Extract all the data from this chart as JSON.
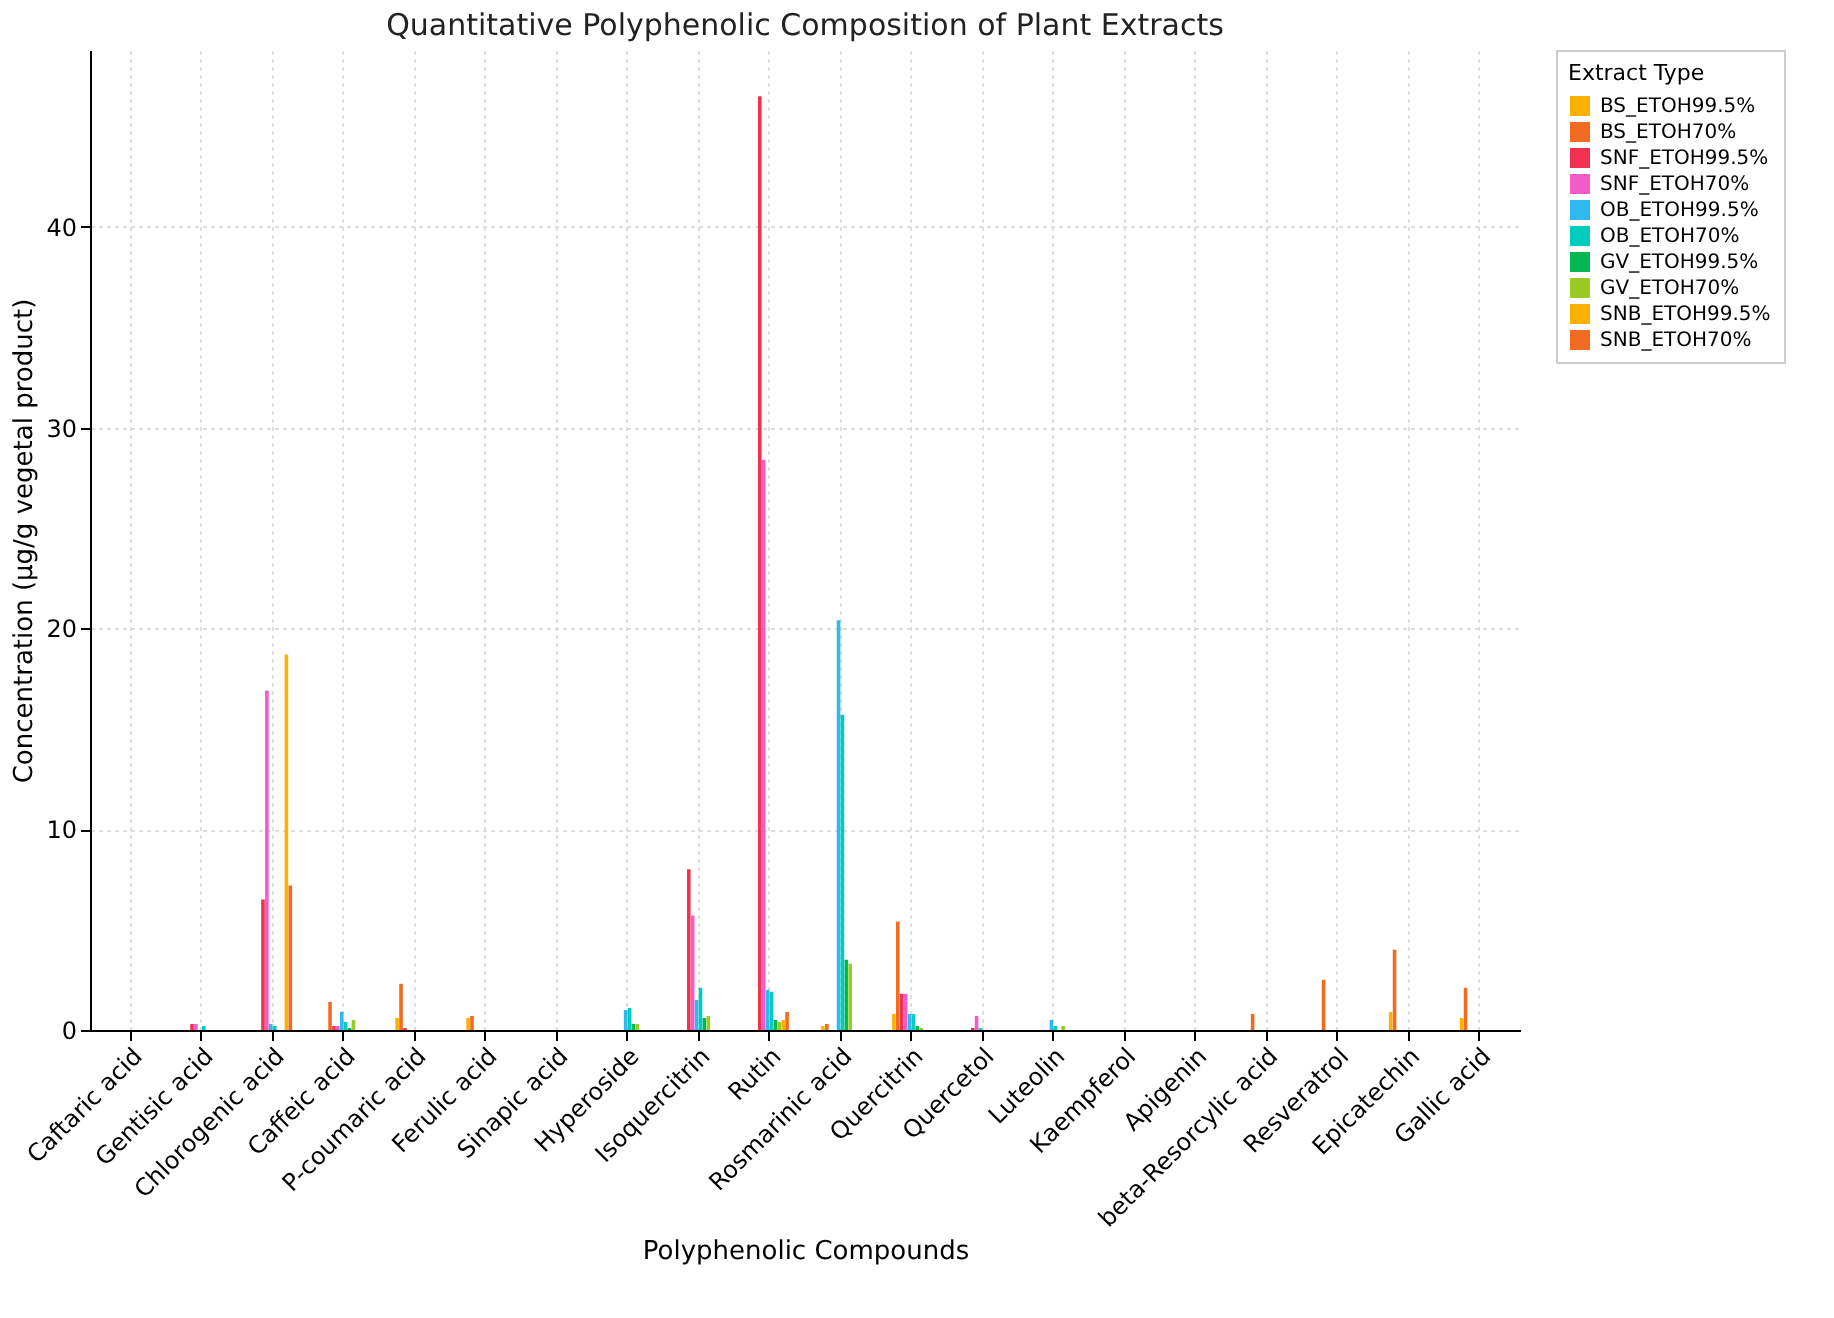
{
  "chart_data": {
    "type": "bar",
    "title": "Quantitative Polyphenolic Composition of Plant Extracts",
    "xlabel": "Polyphenolic Compounds",
    "ylabel": "Concentration (µg/g vegetal product)",
    "legend_title": "Extract Type",
    "legend": "top right",
    "grid": true,
    "ylim": [
      0,
      48.8
    ],
    "yticks": [
      0,
      10,
      20,
      30,
      40
    ],
    "categories": [
      "Caftaric acid",
      "Gentisic acid",
      "Chlorogenic acid",
      "Caffeic acid",
      "P-coumaric acid",
      "Ferulic acid",
      "Sinapic acid",
      "Hyperoside",
      "Isoquercitrin",
      "Rutin",
      "Rosmarinic acid",
      "Quercitrin",
      "Quercetol",
      "Luteolin",
      "Kaempferol",
      "Apigenin",
      "beta-Resorcylic acid",
      "Resveratrol",
      "Epicatechin",
      "Gallic acid"
    ],
    "series": [
      {
        "name": "BS_ETOH99.5%",
        "color": "#ffb000",
        "values": [
          0,
          0,
          0,
          0,
          0.6,
          0.6,
          0,
          0,
          0,
          0,
          0.2,
          0.8,
          0,
          0,
          0,
          0,
          0,
          0,
          0.9,
          0.6
        ]
      },
      {
        "name": "BS_ETOH70%",
        "color": "#f26b21",
        "values": [
          0,
          0,
          0,
          1.4,
          2.3,
          0.7,
          0,
          0,
          0,
          0,
          0.3,
          5.4,
          0,
          0,
          0,
          0,
          0.8,
          2.5,
          4.0,
          2.1
        ]
      },
      {
        "name": "SNF_ETOH99.5%",
        "color": "#f2304f",
        "values": [
          0,
          0.3,
          6.5,
          0.2,
          0.1,
          0,
          0,
          0,
          8.0,
          46.5,
          0,
          1.8,
          0.1,
          0,
          0,
          0,
          0,
          0,
          0,
          0
        ]
      },
      {
        "name": "SNF_ETOH70%",
        "color": "#f35bc8",
        "values": [
          0,
          0.3,
          16.9,
          0.2,
          0,
          0,
          0,
          0,
          5.7,
          28.4,
          0,
          1.8,
          0.7,
          0,
          0,
          0,
          0,
          0,
          0,
          0
        ]
      },
      {
        "name": "OB_ETOH99.5%",
        "color": "#30b8f0",
        "values": [
          0,
          0,
          0.3,
          0.9,
          0,
          0,
          0,
          1.0,
          1.5,
          2.0,
          20.4,
          0.8,
          0.1,
          0.5,
          0,
          0,
          0,
          0,
          0,
          0
        ]
      },
      {
        "name": "OB_ETOH70%",
        "color": "#00ccc0",
        "values": [
          0,
          0.2,
          0.2,
          0.4,
          0,
          0,
          0,
          1.1,
          2.1,
          1.9,
          15.7,
          0.8,
          0,
          0.2,
          0,
          0,
          0,
          0,
          0,
          0
        ]
      },
      {
        "name": "GV_ETOH99.5%",
        "color": "#00b84f",
        "values": [
          0,
          0,
          0,
          0.1,
          0,
          0,
          0,
          0.3,
          0.6,
          0.5,
          3.5,
          0.2,
          0,
          0,
          0,
          0,
          0,
          0,
          0,
          0
        ]
      },
      {
        "name": "GV_ETOH70%",
        "color": "#99cc22",
        "values": [
          0,
          0,
          0,
          0.5,
          0,
          0,
          0,
          0.3,
          0.7,
          0.4,
          3.3,
          0.1,
          0,
          0.2,
          0,
          0,
          0,
          0,
          0,
          0
        ]
      },
      {
        "name": "SNB_ETOH99.5%",
        "color": "#ffb000",
        "values": [
          0,
          0,
          18.7,
          0,
          0,
          0,
          0,
          0,
          0,
          0.5,
          0,
          0,
          0,
          0,
          0,
          0,
          0,
          0,
          0,
          0
        ]
      },
      {
        "name": "SNB_ETOH70%",
        "color": "#f26b21",
        "values": [
          0,
          0,
          7.2,
          0,
          0,
          0,
          0,
          0,
          0,
          0.9,
          0,
          0,
          0,
          0,
          0,
          0,
          0,
          0,
          0,
          0
        ]
      }
    ]
  }
}
